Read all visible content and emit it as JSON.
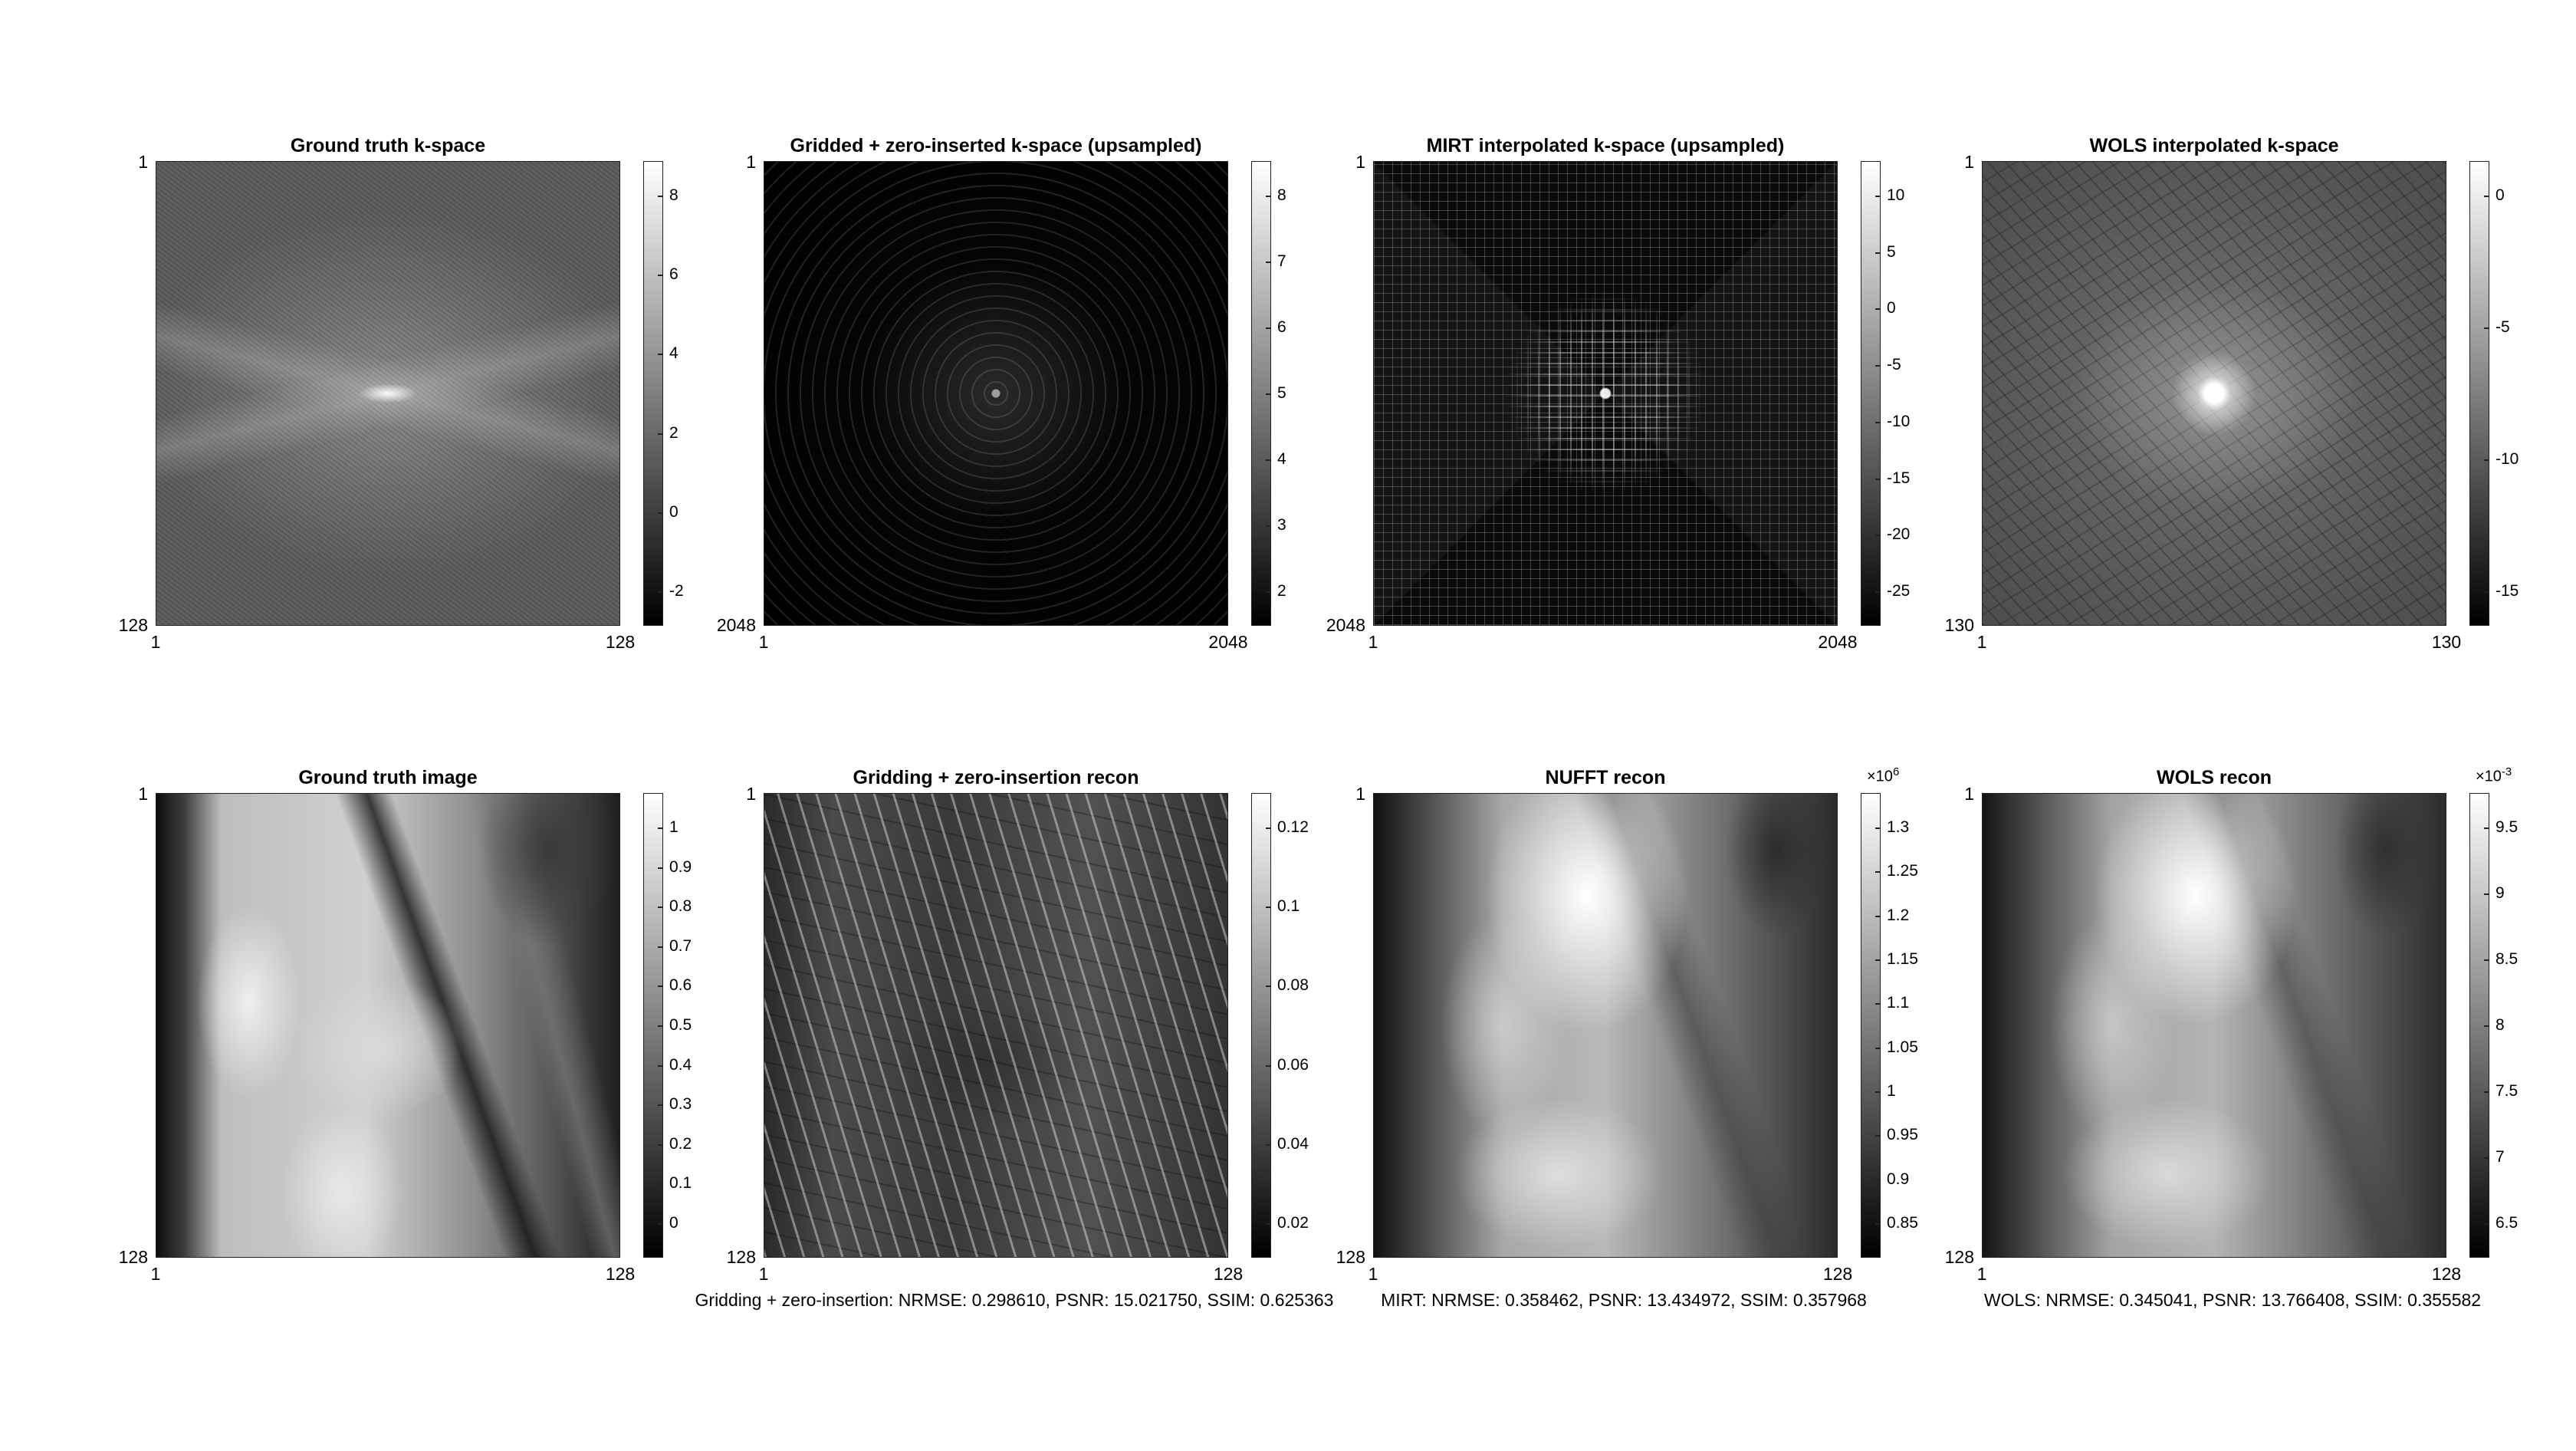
{
  "panels": [
    {
      "title": "Ground truth k-space",
      "x_ticks": [
        "1",
        "128"
      ],
      "y_ticks": [
        "1",
        "128"
      ],
      "colorbar": [
        "8",
        "6",
        "4",
        "2",
        "0",
        "-2"
      ],
      "colorbar_exponent": "",
      "metric": "",
      "texture": "ks-gt"
    },
    {
      "title": "Gridded + zero-inserted k-space (upsampled)",
      "x_ticks": [
        "1",
        "2048"
      ],
      "y_ticks": [
        "1",
        "2048"
      ],
      "colorbar": [
        "8",
        "7",
        "6",
        "5",
        "4",
        "3",
        "2"
      ],
      "colorbar_exponent": "",
      "metric": "",
      "texture": "ks-grid"
    },
    {
      "title": "MIRT interpolated k-space (upsampled)",
      "x_ticks": [
        "1",
        "2048"
      ],
      "y_ticks": [
        "1",
        "2048"
      ],
      "colorbar": [
        "10",
        "5",
        "0",
        "-5",
        "-10",
        "-15",
        "-20",
        "-25"
      ],
      "colorbar_exponent": "",
      "metric": "",
      "texture": "ks-mirt"
    },
    {
      "title": "WOLS interpolated k-space",
      "x_ticks": [
        "1",
        "130"
      ],
      "y_ticks": [
        "1",
        "130"
      ],
      "colorbar": [
        "0",
        "-5",
        "-10",
        "-15"
      ],
      "colorbar_exponent": "",
      "metric": "",
      "texture": "ks-wols"
    },
    {
      "title": "Ground truth image",
      "x_ticks": [
        "1",
        "128"
      ],
      "y_ticks": [
        "1",
        "128"
      ],
      "colorbar": [
        "1",
        "0.9",
        "0.8",
        "0.7",
        "0.6",
        "0.5",
        "0.4",
        "0.3",
        "0.2",
        "0.1",
        "0"
      ],
      "colorbar_exponent": "",
      "metric": "",
      "texture": "im-gt"
    },
    {
      "title": "Gridding + zero-insertion recon",
      "x_ticks": [
        "1",
        "128"
      ],
      "y_ticks": [
        "1",
        "128"
      ],
      "colorbar": [
        "0.12",
        "0.1",
        "0.08",
        "0.06",
        "0.04",
        "0.02"
      ],
      "colorbar_exponent": "",
      "metric": "Gridding + zero-insertion: NRMSE: 0.298610, PSNR: 15.021750, SSIM: 0.625363",
      "texture": "im-grid"
    },
    {
      "title": "NUFFT recon",
      "x_ticks": [
        "1",
        "128"
      ],
      "y_ticks": [
        "1",
        "128"
      ],
      "colorbar": [
        "1.3",
        "1.25",
        "1.2",
        "1.15",
        "1.1",
        "1.05",
        "1",
        "0.95",
        "0.9",
        "0.85"
      ],
      "colorbar_exponent": "6",
      "metric": "MIRT: NRMSE: 0.358462, PSNR: 13.434972, SSIM: 0.357968",
      "texture": "im-nufft"
    },
    {
      "title": "WOLS recon",
      "x_ticks": [
        "1",
        "128"
      ],
      "y_ticks": [
        "1",
        "128"
      ],
      "colorbar": [
        "9.5",
        "9",
        "8.5",
        "8",
        "7.5",
        "7",
        "6.5"
      ],
      "colorbar_exponent": "-3",
      "metric": "WOLS: NRMSE: 0.345041, PSNR: 13.766408, SSIM: 0.355582",
      "texture": "im-wols"
    }
  ]
}
